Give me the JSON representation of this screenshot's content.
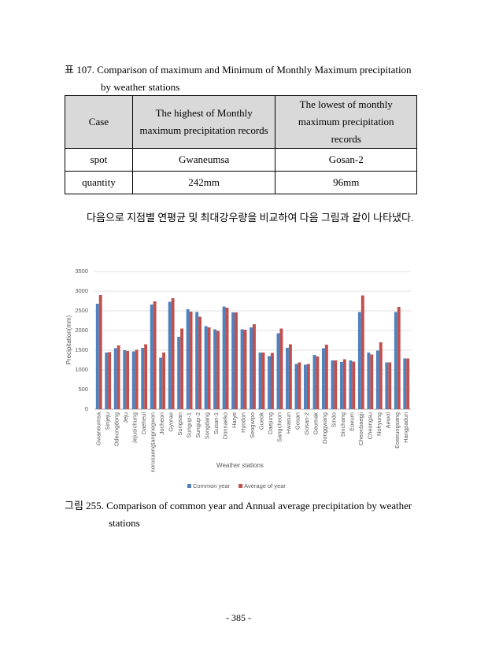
{
  "table_caption": "표 107. Comparison of maximum and Minimum of Monthly Maximum precipitation by weather stations",
  "table": {
    "header": [
      "Case",
      "The highest of Monthly maximum precipitation records",
      "The lowest of monthly maximum precipitation records"
    ],
    "rows": [
      [
        "spot",
        "Gwaneumsa",
        "Gosan-2"
      ],
      [
        "quantity",
        "242mm",
        "96mm"
      ]
    ]
  },
  "paragraph": "다음으로 지점별 연평균 및 최대강우량을 비교하여 다음 그림과 같이 나타냈다.",
  "chart_data": {
    "type": "bar",
    "categories": [
      "Gwaneumsa",
      "Sinjeju",
      "Odeungdong",
      "Jeju",
      "Jejusichung",
      "Daeheul",
      "norusaengtangnegwon",
      "Jocheon",
      "Gyorae",
      "Sungsan",
      "Sungup-1",
      "Sungup-2",
      "Songdang",
      "Susan-1",
      "Donnaeko",
      "Harye",
      "Hyodon",
      "Seogwipo",
      "Gueok",
      "Daejung",
      "Sangcheon",
      "Hwasun",
      "Gosan",
      "Gosan-2",
      "Geumak",
      "Donggwang",
      "Sindo",
      "Sinchang",
      "Eoeum",
      "Cheonbaegji",
      "Cheongsu",
      "Nohyung",
      "Aewol",
      "Eoseungsang",
      "Hangpaduri"
    ],
    "series": [
      {
        "name": "Common year",
        "color": "#4f81bd",
        "values": [
          2680,
          1440,
          1550,
          1500,
          1470,
          1560,
          2660,
          1310,
          2730,
          1840,
          2540,
          2470,
          2110,
          2030,
          2610,
          2460,
          2030,
          2080,
          1440,
          1350,
          1930,
          1560,
          1150,
          1130,
          1380,
          1550,
          1240,
          1200,
          1240,
          2470,
          1440,
          1490,
          1190,
          2470,
          1290
        ]
      },
      {
        "name": "Average of year",
        "color": "#c0504d",
        "values": [
          2900,
          1450,
          1620,
          1480,
          1510,
          1650,
          2740,
          1440,
          2820,
          2050,
          2480,
          2350,
          2080,
          1990,
          2580,
          2460,
          2020,
          2160,
          1440,
          1430,
          2050,
          1650,
          1190,
          1150,
          1340,
          1640,
          1240,
          1270,
          1210,
          2890,
          1390,
          1700,
          1190,
          2600,
          1290
        ]
      }
    ],
    "ylim": [
      0,
      3500
    ],
    "yticks": [
      0,
      500,
      1000,
      1500,
      2000,
      2500,
      3000,
      3500
    ],
    "x_label": "Weather stations",
    "y_label": "Precipitation(mm)",
    "grid": true,
    "legend": "bottom"
  },
  "figure_caption": "그림 255. Comparison of common year and Annual average precipitation by weather stations",
  "page_number": "- 385 -"
}
